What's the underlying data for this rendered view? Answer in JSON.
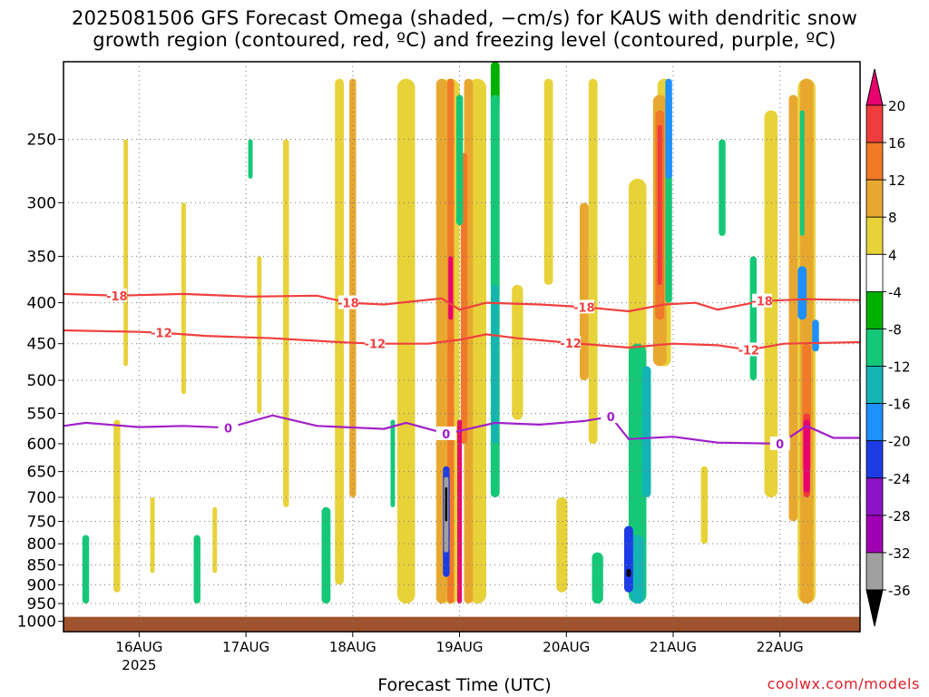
{
  "title": {
    "line1": "2025081506 GFS Forecast Omega (shaded, −cm/s) for KAUS with dendritic snow",
    "line2": "growth region (contoured, red, ºC) and freezing level (contoured, purple, ºC)"
  },
  "credit": "coolwx.com/models",
  "chart_data": {
    "type": "heatmap",
    "xlabel": "Forecast Time (UTC)",
    "x_ticks": [
      "16AUG",
      "17AUG",
      "18AUG",
      "19AUG",
      "20AUG",
      "21AUG",
      "22AUG"
    ],
    "x_year_label": "2025",
    "x_range_hours": [
      -17,
      162
    ],
    "y_scale": "log-pressure",
    "y_range": [
      1030,
      200
    ],
    "y_ticks": [
      250,
      300,
      350,
      400,
      450,
      500,
      550,
      600,
      650,
      700,
      750,
      800,
      850,
      900,
      950,
      1000
    ],
    "colorbar": {
      "labels": [
        "20",
        "16",
        "12",
        "8",
        "4",
        "-4",
        "-8",
        "-12",
        "-16",
        "-20",
        "-24",
        "-28",
        "-32",
        "-36"
      ],
      "colors": [
        "#e8006e",
        "#f03c3c",
        "#f07a28",
        "#e8a830",
        "#e8d23a",
        "#ffffff",
        "#00b000",
        "#14c878",
        "#14b4b4",
        "#1e90ff",
        "#1e3ce6",
        "#8c14c8",
        "#a000b4",
        "#a0a0a0",
        "#000000"
      ]
    },
    "contours": [
      {
        "level": "-18",
        "color": "#f04040",
        "label_positions": [
          [
            -5,
            392
          ],
          [
            47,
            400
          ],
          [
            100,
            405
          ],
          [
            140,
            398
          ]
        ],
        "points": [
          [
            -17,
            390
          ],
          [
            -5,
            392
          ],
          [
            10,
            390
          ],
          [
            25,
            393
          ],
          [
            40,
            392
          ],
          [
            47,
            400
          ],
          [
            55,
            402
          ],
          [
            68,
            395
          ],
          [
            72,
            408
          ],
          [
            78,
            400
          ],
          [
            90,
            402
          ],
          [
            100,
            405
          ],
          [
            110,
            410
          ],
          [
            118,
            402
          ],
          [
            125,
            400
          ],
          [
            130,
            408
          ],
          [
            140,
            398
          ],
          [
            150,
            396
          ],
          [
            162,
            397
          ]
        ]
      },
      {
        "level": "-12",
        "color": "#f04040",
        "label_positions": [
          [
            5,
            436
          ],
          [
            53,
            450
          ],
          [
            97,
            449
          ],
          [
            137,
            458
          ]
        ],
        "points": [
          [
            -17,
            433
          ],
          [
            0,
            435
          ],
          [
            5,
            436
          ],
          [
            15,
            440
          ],
          [
            30,
            443
          ],
          [
            45,
            448
          ],
          [
            53,
            450
          ],
          [
            65,
            450
          ],
          [
            72,
            445
          ],
          [
            78,
            438
          ],
          [
            85,
            443
          ],
          [
            97,
            449
          ],
          [
            110,
            455
          ],
          [
            120,
            450
          ],
          [
            130,
            452
          ],
          [
            137,
            458
          ],
          [
            145,
            450
          ],
          [
            162,
            448
          ]
        ]
      },
      {
        "level": "0",
        "color": "#a020c8",
        "label_positions": [
          [
            20,
            573
          ],
          [
            69,
            583
          ],
          [
            106,
            555
          ],
          [
            144,
            600
          ]
        ],
        "points": [
          [
            -17,
            570
          ],
          [
            -12,
            565
          ],
          [
            0,
            572
          ],
          [
            10,
            570
          ],
          [
            20,
            573
          ],
          [
            30,
            553
          ],
          [
            40,
            570
          ],
          [
            55,
            575
          ],
          [
            60,
            565
          ],
          [
            69,
            583
          ],
          [
            74,
            575
          ],
          [
            80,
            565
          ],
          [
            90,
            568
          ],
          [
            100,
            562
          ],
          [
            106,
            555
          ],
          [
            110,
            592
          ],
          [
            120,
            588
          ],
          [
            130,
            598
          ],
          [
            144,
            600
          ],
          [
            150,
            570
          ],
          [
            156,
            590
          ],
          [
            162,
            590
          ]
        ]
      }
    ],
    "shading": [
      {
        "v": 4,
        "cells": [
          [
            -5,
            560,
            920,
            1.5
          ],
          [
            -3,
            250,
            480,
            1
          ],
          [
            3,
            700,
            870,
            1
          ],
          [
            10,
            300,
            520,
            1
          ],
          [
            17,
            720,
            870,
            1
          ],
          [
            27,
            350,
            550,
            1
          ],
          [
            33,
            250,
            720,
            1.3
          ],
          [
            45,
            210,
            900,
            2
          ],
          [
            60,
            210,
            950,
            4
          ],
          [
            70,
            210,
            950,
            4
          ],
          [
            76,
            210,
            950,
            4
          ],
          [
            85,
            380,
            560,
            2.5
          ],
          [
            92,
            210,
            380,
            2
          ],
          [
            95,
            700,
            920,
            2.5
          ],
          [
            102,
            210,
            600,
            2
          ],
          [
            112,
            280,
            500,
            4
          ],
          [
            118,
            210,
            480,
            3
          ],
          [
            127,
            640,
            800,
            1.5
          ],
          [
            142,
            230,
            700,
            3
          ],
          [
            150,
            210,
            950,
            4
          ]
        ]
      },
      {
        "v": 8,
        "cells": [
          [
            48,
            210,
            700,
            1.5
          ],
          [
            68,
            210,
            950,
            2.5
          ],
          [
            74,
            210,
            950,
            2
          ],
          [
            100,
            300,
            500,
            2
          ],
          [
            117,
            220,
            480,
            3
          ],
          [
            147,
            220,
            750,
            2
          ],
          [
            150,
            210,
            950,
            3
          ]
        ]
      },
      {
        "v": 12,
        "cells": [
          [
            70,
            210,
            950,
            1.5
          ],
          [
            73,
            260,
            600,
            1.5
          ],
          [
            117,
            230,
            420,
            2
          ],
          [
            150,
            450,
            650,
            2
          ]
        ]
      },
      {
        "v": 16,
        "cells": [
          [
            117,
            240,
            380,
            1
          ],
          [
            150,
            550,
            700,
            1.5
          ]
        ]
      },
      {
        "v": 20,
        "cells": [
          [
            70,
            350,
            420,
            1
          ],
          [
            72,
            560,
            950,
            1
          ],
          [
            111,
            620,
            690,
            1
          ],
          [
            150,
            560,
            690,
            1.5
          ]
        ]
      },
      {
        "v": -4,
        "cells": [
          [
            80,
            200,
            230,
            2
          ]
        ]
      },
      {
        "v": -8,
        "cells": [
          [
            -12,
            780,
            950,
            1.5
          ],
          [
            13,
            780,
            950,
            1.5
          ],
          [
            25,
            250,
            280,
            1
          ],
          [
            42,
            720,
            950,
            2
          ],
          [
            57,
            560,
            720,
            1
          ],
          [
            72,
            220,
            320,
            1.5
          ],
          [
            80,
            220,
            700,
            2
          ],
          [
            103,
            820,
            950,
            2.5
          ],
          [
            112,
            450,
            950,
            4
          ],
          [
            119,
            220,
            400,
            1.5
          ],
          [
            131,
            250,
            330,
            1.5
          ],
          [
            138,
            350,
            500,
            1.5
          ],
          [
            149,
            230,
            330,
            1
          ]
        ]
      },
      {
        "v": -12,
        "cells": [
          [
            80,
            380,
            600,
            1.5
          ],
          [
            112,
            780,
            950,
            3
          ],
          [
            114,
            480,
            700,
            2
          ]
        ]
      },
      {
        "v": -16,
        "cells": [
          [
            119,
            210,
            280,
            1.5
          ],
          [
            149,
            360,
            420,
            2
          ],
          [
            152,
            420,
            460,
            1.5
          ]
        ]
      },
      {
        "v": -20,
        "cells": [
          [
            69,
            640,
            880,
            1.5
          ],
          [
            110,
            760,
            920,
            2
          ]
        ]
      },
      {
        "v": -28,
        "cells": [
          [
            69,
            660,
            820,
            1
          ]
        ]
      },
      {
        "v": -32,
        "cells": [
          [
            110,
            860,
            880,
            1
          ]
        ]
      },
      {
        "v": -36,
        "cells": [
          [
            69,
            680,
            750,
            0.5
          ]
        ]
      }
    ],
    "ground": {
      "pressure": 1000,
      "color": "#a0522d"
    },
    "grid": true
  }
}
